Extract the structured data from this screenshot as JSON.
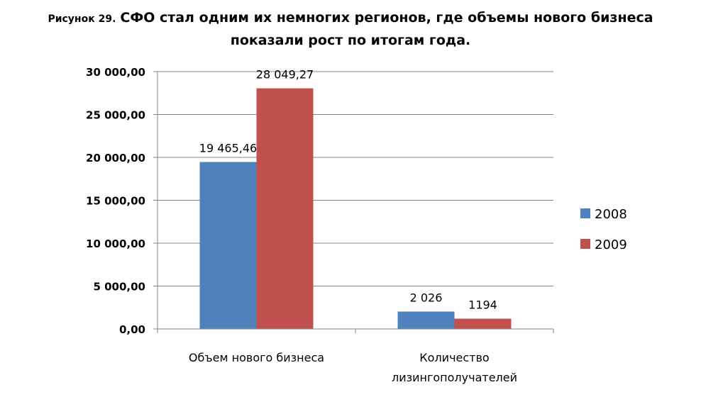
{
  "title": {
    "prefix": "Рисунок 29.",
    "line1": "СФО стал одним их немногих регионов, где объемы нового бизнеса",
    "line2": "показали рост по итогам года."
  },
  "chart_data": {
    "type": "bar",
    "categories": [
      "Объем нового бизнеса",
      "Количество лизингополучателей"
    ],
    "category_lines": [
      [
        "Объем нового бизнеса"
      ],
      [
        "Количество",
        "лизингополучателей"
      ]
    ],
    "series": [
      {
        "name": "2008",
        "values": [
          19465.46,
          2026
        ],
        "labels": [
          "19 465,46",
          "2 026"
        ],
        "color": "#4F81BD"
      },
      {
        "name": "2009",
        "values": [
          28049.27,
          1194
        ],
        "labels": [
          "28 049,27",
          "1194"
        ],
        "color": "#C0504D"
      }
    ],
    "ylim": [
      0,
      30000
    ],
    "yticks": [
      {
        "value": 0,
        "label": "0,00"
      },
      {
        "value": 5000,
        "label": "5 000,00"
      },
      {
        "value": 10000,
        "label": "10 000,00"
      },
      {
        "value": 15000,
        "label": "15 000,00"
      },
      {
        "value": 20000,
        "label": "20 000,00"
      },
      {
        "value": 25000,
        "label": "25 000,00"
      },
      {
        "value": 30000,
        "label": "30 000,00"
      }
    ],
    "xlabel": "",
    "ylabel": "",
    "grid": true,
    "legend_position": "right"
  }
}
